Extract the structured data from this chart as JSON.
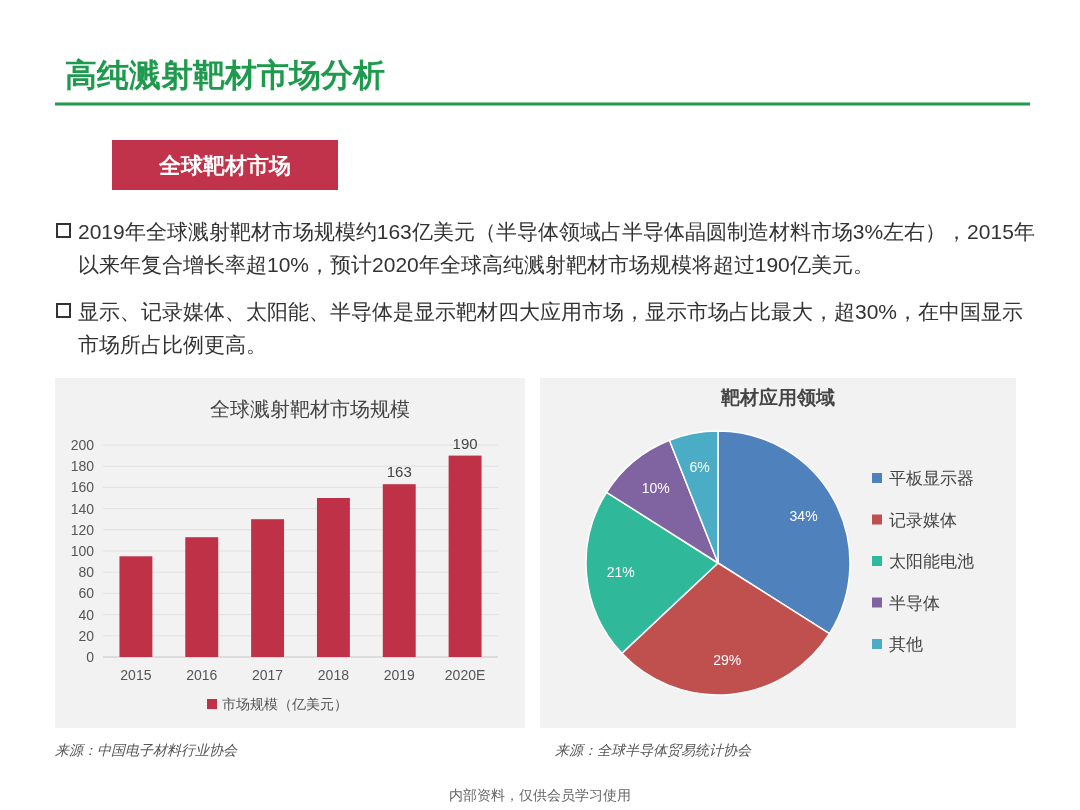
{
  "chart_data": [
    {
      "type": "other",
      "title": "高纯溅射靶材市场分析",
      "subtitle": "全球靶材市场",
      "annotations": [
        "2019年全球溅射靶材市场规模约163亿美元（半导体领域占半导体晶圆制造材料市场3%左右），2015年以来年复合增长率超10%，预计2020年全球高纯溅射靶材市场规模将超过190亿美元。",
        "显示、记录媒体、太阳能、半导体是显示靶材四大应用市场，显示市场占比最大，超30%，在中国显示市场所占比例更高。",
        "内部资料，仅供会员学习使用"
      ]
    },
    {
      "type": "bar",
      "title": "全球溅射靶材市场规模",
      "categories": [
        "2015",
        "2016",
        "2017",
        "2018",
        "2019",
        "2020E"
      ],
      "series": [
        {
          "name": "市场规模（亿美元）",
          "color": "#be3146",
          "values": [
            95,
            113,
            130,
            150,
            163,
            190
          ],
          "value_labels": [
            null,
            null,
            null,
            null,
            "163",
            "190"
          ]
        }
      ],
      "ylim": [
        0,
        200
      ],
      "yticks": [
        0,
        20,
        40,
        60,
        80,
        100,
        120,
        140,
        160,
        180,
        200
      ],
      "grid": "y",
      "legend": "bottom",
      "annotations": [
        "来源：中国电子材料行业协会"
      ]
    },
    {
      "type": "pie",
      "title": "靶材应用领域",
      "categories": [
        "平板显示器",
        "记录媒体",
        "太阳能电池",
        "半导体",
        "其他"
      ],
      "values": [
        34,
        29,
        21,
        10,
        6
      ],
      "colors": [
        "#4f81bd",
        "#c0504d",
        "#2fb99a",
        "#8064a2",
        "#4bacc6"
      ],
      "value_labels": [
        "34%",
        "29%",
        "21%",
        "10%",
        "6%"
      ],
      "legend": "right",
      "annotations": [
        "来源：全球半导体贸易统计协会"
      ]
    }
  ]
}
